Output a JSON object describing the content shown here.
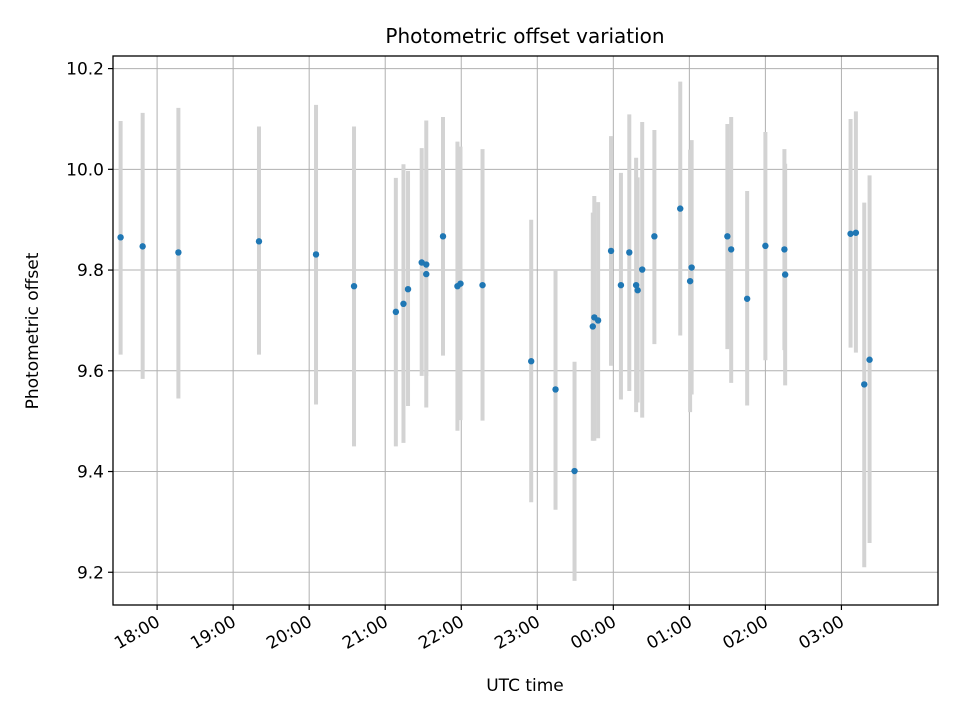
{
  "chart_data": {
    "type": "scatter",
    "title": "Photometric offset variation",
    "xlabel": "UTC time",
    "ylabel": "Photometric offset",
    "x_unit": "hours after 00:00 UTC of first day (ticks labeled HH:00)",
    "xlim": [
      -6.58,
      4.27
    ],
    "ylim": [
      9.135,
      10.225
    ],
    "x_ticks": [
      {
        "x": -6.0,
        "label": "18:00"
      },
      {
        "x": -5.0,
        "label": "19:00"
      },
      {
        "x": -4.0,
        "label": "20:00"
      },
      {
        "x": -3.0,
        "label": "21:00"
      },
      {
        "x": -2.0,
        "label": "22:00"
      },
      {
        "x": -1.0,
        "label": "23:00"
      },
      {
        "x": 0.0,
        "label": "00:00"
      },
      {
        "x": 1.0,
        "label": "01:00"
      },
      {
        "x": 2.0,
        "label": "02:00"
      },
      {
        "x": 3.0,
        "label": "03:00"
      }
    ],
    "y_ticks": [
      {
        "y": 9.2,
        "label": "9.2"
      },
      {
        "y": 9.4,
        "label": "9.4"
      },
      {
        "y": 9.6,
        "label": "9.6"
      },
      {
        "y": 9.8,
        "label": "9.8"
      },
      {
        "y": 10.0,
        "label": "10.0"
      },
      {
        "y": 10.2,
        "label": "10.2"
      }
    ],
    "grid": true,
    "marker_color": "#1f77b4",
    "errorbar_color": "#d3d3d3",
    "points": [
      {
        "x": -6.48,
        "y": 9.865,
        "lo": 9.632,
        "hi": 10.096
      },
      {
        "x": -6.19,
        "y": 9.847,
        "lo": 9.584,
        "hi": 10.112
      },
      {
        "x": -5.72,
        "y": 9.835,
        "lo": 9.545,
        "hi": 10.122
      },
      {
        "x": -4.66,
        "y": 9.857,
        "lo": 9.632,
        "hi": 10.085
      },
      {
        "x": -3.91,
        "y": 9.831,
        "lo": 9.533,
        "hi": 10.128
      },
      {
        "x": -3.41,
        "y": 9.768,
        "lo": 9.45,
        "hi": 10.085
      },
      {
        "x": -2.86,
        "y": 9.717,
        "lo": 9.45,
        "hi": 9.983
      },
      {
        "x": -2.76,
        "y": 9.733,
        "lo": 9.457,
        "hi": 10.01
      },
      {
        "x": -2.7,
        "y": 9.762,
        "lo": 9.53,
        "hi": 9.997
      },
      {
        "x": -2.52,
        "y": 9.815,
        "lo": 9.59,
        "hi": 10.042
      },
      {
        "x": -2.46,
        "y": 9.811,
        "lo": 9.527,
        "hi": 10.097
      },
      {
        "x": -2.46,
        "y": 9.792,
        "lo": 9.59,
        "hi": 10.0
      },
      {
        "x": -2.24,
        "y": 9.867,
        "lo": 9.63,
        "hi": 10.104
      },
      {
        "x": -2.05,
        "y": 9.768,
        "lo": 9.481,
        "hi": 10.055
      },
      {
        "x": -2.01,
        "y": 9.773,
        "lo": 9.502,
        "hi": 10.045
      },
      {
        "x": -1.72,
        "y": 9.77,
        "lo": 9.501,
        "hi": 10.04
      },
      {
        "x": -1.08,
        "y": 9.619,
        "lo": 9.339,
        "hi": 9.9
      },
      {
        "x": -0.76,
        "y": 9.563,
        "lo": 9.324,
        "hi": 9.8
      },
      {
        "x": -0.51,
        "y": 9.401,
        "lo": 9.183,
        "hi": 9.618
      },
      {
        "x": -0.27,
        "y": 9.688,
        "lo": 9.461,
        "hi": 9.914
      },
      {
        "x": -0.25,
        "y": 9.706,
        "lo": 9.461,
        "hi": 9.947
      },
      {
        "x": -0.2,
        "y": 9.7,
        "lo": 9.466,
        "hi": 9.935
      },
      {
        "x": -0.03,
        "y": 9.838,
        "lo": 9.61,
        "hi": 10.066
      },
      {
        "x": 0.1,
        "y": 9.77,
        "lo": 9.543,
        "hi": 9.993
      },
      {
        "x": 0.21,
        "y": 9.835,
        "lo": 9.56,
        "hi": 10.109
      },
      {
        "x": 0.3,
        "y": 9.77,
        "lo": 9.518,
        "hi": 10.023
      },
      {
        "x": 0.32,
        "y": 9.76,
        "lo": 9.537,
        "hi": 9.984
      },
      {
        "x": 0.38,
        "y": 9.801,
        "lo": 9.507,
        "hi": 10.094
      },
      {
        "x": 0.54,
        "y": 9.867,
        "lo": 9.653,
        "hi": 10.078
      },
      {
        "x": 0.88,
        "y": 9.922,
        "lo": 9.67,
        "hi": 10.174
      },
      {
        "x": 1.01,
        "y": 9.778,
        "lo": 9.518,
        "hi": 10.039
      },
      {
        "x": 1.03,
        "y": 9.805,
        "lo": 9.553,
        "hi": 10.058
      },
      {
        "x": 1.5,
        "y": 9.867,
        "lo": 9.643,
        "hi": 10.09
      },
      {
        "x": 1.55,
        "y": 9.841,
        "lo": 9.576,
        "hi": 10.104
      },
      {
        "x": 1.76,
        "y": 9.743,
        "lo": 9.531,
        "hi": 9.957
      },
      {
        "x": 2.0,
        "y": 9.848,
        "lo": 9.621,
        "hi": 10.074
      },
      {
        "x": 2.25,
        "y": 9.841,
        "lo": 9.641,
        "hi": 10.04
      },
      {
        "x": 2.26,
        "y": 9.791,
        "lo": 9.571,
        "hi": 10.011
      },
      {
        "x": 3.12,
        "y": 9.872,
        "lo": 9.646,
        "hi": 10.1
      },
      {
        "x": 3.19,
        "y": 9.874,
        "lo": 9.636,
        "hi": 10.115
      },
      {
        "x": 3.3,
        "y": 9.573,
        "lo": 9.21,
        "hi": 9.934
      },
      {
        "x": 3.37,
        "y": 9.622,
        "lo": 9.258,
        "hi": 9.988
      }
    ]
  }
}
